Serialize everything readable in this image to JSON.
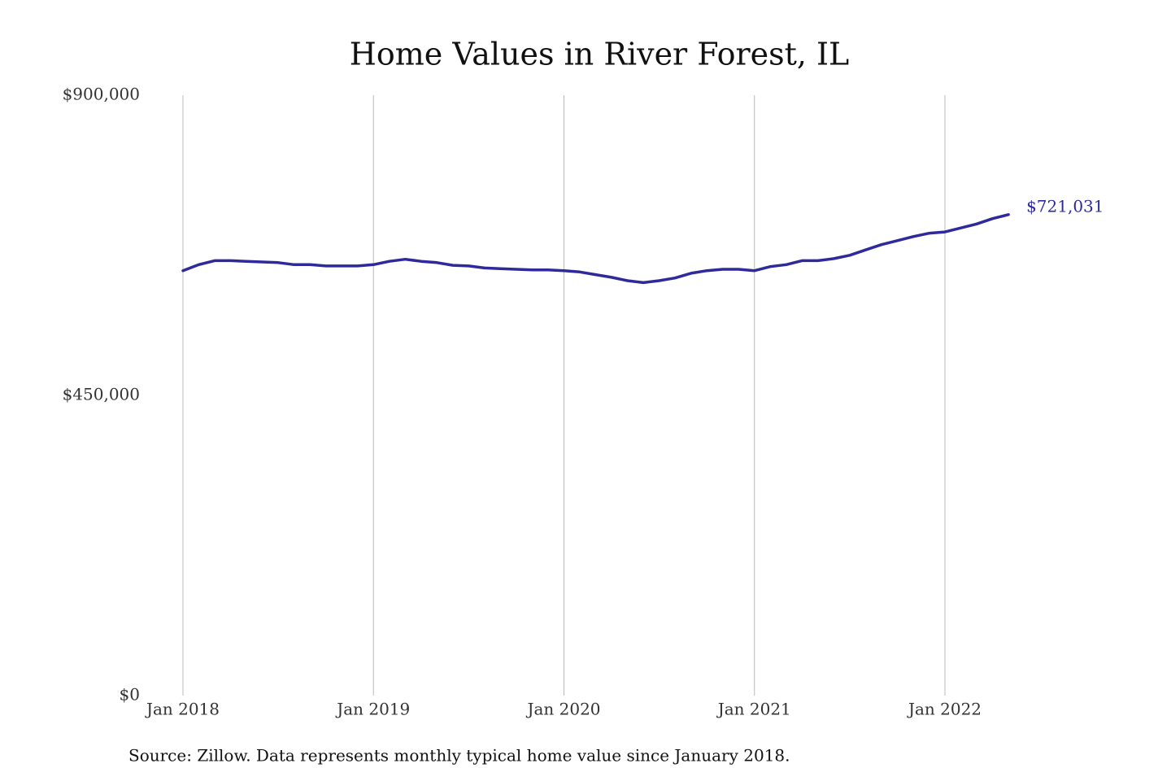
{
  "chart_data": {
    "type": "line",
    "title": "Home Values in River Forest, IL",
    "source": "Source: Zillow. Data represents monthly typical home value since January 2018.",
    "x": [
      "2018-01",
      "2018-02",
      "2018-03",
      "2018-04",
      "2018-05",
      "2018-06",
      "2018-07",
      "2018-08",
      "2018-09",
      "2018-10",
      "2018-11",
      "2018-12",
      "2019-01",
      "2019-02",
      "2019-03",
      "2019-04",
      "2019-05",
      "2019-06",
      "2019-07",
      "2019-08",
      "2019-09",
      "2019-10",
      "2019-11",
      "2019-12",
      "2020-01",
      "2020-02",
      "2020-03",
      "2020-04",
      "2020-05",
      "2020-06",
      "2020-07",
      "2020-08",
      "2020-09",
      "2020-10",
      "2020-11",
      "2020-12",
      "2021-01",
      "2021-02",
      "2021-03",
      "2021-04",
      "2021-05",
      "2021-06",
      "2021-07",
      "2021-08",
      "2021-09",
      "2021-10",
      "2021-11",
      "2021-12",
      "2022-01",
      "2022-02",
      "2022-03",
      "2022-04",
      "2022-05"
    ],
    "series": [
      {
        "name": "Home value",
        "color": "#2e2a9c",
        "values": [
          637000,
          646000,
          652000,
          652000,
          651000,
          650000,
          649000,
          646000,
          646000,
          644000,
          644000,
          644000,
          646000,
          651000,
          654000,
          651000,
          649000,
          645000,
          644000,
          641000,
          640000,
          639000,
          638000,
          638000,
          637000,
          635000,
          631000,
          627000,
          622000,
          619000,
          622000,
          626000,
          633000,
          637000,
          639000,
          639000,
          637000,
          643000,
          646000,
          652000,
          652000,
          655000,
          660000,
          668000,
          676000,
          682000,
          688000,
          693000,
          695000,
          701000,
          707000,
          715000,
          721031
        ],
        "value_labels": [
          null,
          null,
          null,
          null,
          null,
          null,
          null,
          null,
          null,
          null,
          null,
          null,
          null,
          null,
          null,
          null,
          null,
          null,
          null,
          null,
          null,
          null,
          null,
          null,
          null,
          null,
          null,
          null,
          null,
          null,
          null,
          null,
          null,
          null,
          null,
          null,
          null,
          null,
          null,
          null,
          null,
          null,
          null,
          null,
          null,
          null,
          null,
          null,
          null,
          null,
          null,
          null,
          "$721,031"
        ]
      }
    ],
    "xticks": [
      {
        "value": "2018-01",
        "label": "Jan 2018"
      },
      {
        "value": "2019-01",
        "label": "Jan 2019"
      },
      {
        "value": "2020-01",
        "label": "Jan 2020"
      },
      {
        "value": "2021-01",
        "label": "Jan 2021"
      },
      {
        "value": "2022-01",
        "label": "Jan 2022"
      }
    ],
    "ylim": [
      0,
      900000
    ],
    "yticks": [
      {
        "value": 0,
        "label": "$0"
      },
      {
        "value": 450000,
        "label": "$450,000"
      },
      {
        "value": 900000,
        "label": "$900,000"
      }
    ],
    "grid": "x"
  }
}
